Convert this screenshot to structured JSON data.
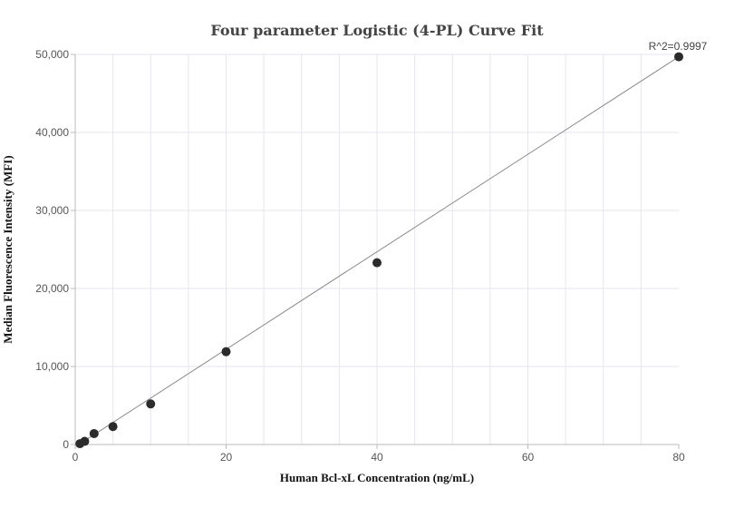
{
  "chart_data": {
    "type": "scatter",
    "title": "Four parameter Logistic (4-PL) Curve Fit",
    "xlabel": "Human Bcl-xL Concentration (ng/mL)",
    "ylabel": "Median Fluorescence Intensity (MFI)",
    "xlim": [
      0,
      80
    ],
    "ylim": [
      0,
      50000
    ],
    "x_ticks": [
      0,
      20,
      40,
      60,
      80
    ],
    "y_ticks": [
      0,
      10000,
      20000,
      30000,
      40000,
      50000
    ],
    "x_tick_labels": [
      "0",
      "20",
      "40",
      "60",
      "80"
    ],
    "y_tick_labels": [
      "0",
      "10,000",
      "20,000",
      "30,000",
      "40,000",
      "50,000"
    ],
    "grid": true,
    "annotation": "R^2=0.9997",
    "series": [
      {
        "points": [
          {
            "x": 0.625,
            "y": 100
          },
          {
            "x": 1.25,
            "y": 400
          },
          {
            "x": 2.5,
            "y": 1400
          },
          {
            "x": 5,
            "y": 2300
          },
          {
            "x": 10,
            "y": 5200
          },
          {
            "x": 20,
            "y": 11900
          },
          {
            "x": 40,
            "y": 23300
          },
          {
            "x": 80,
            "y": 49700
          }
        ]
      }
    ],
    "fit_line": {
      "x": [
        0,
        80
      ],
      "y": [
        -300,
        49700
      ]
    },
    "colors": {
      "point": "#2b2b2b",
      "line": "#888888",
      "grid": "#e6e6ee",
      "axis": "#bbbbbb"
    }
  }
}
